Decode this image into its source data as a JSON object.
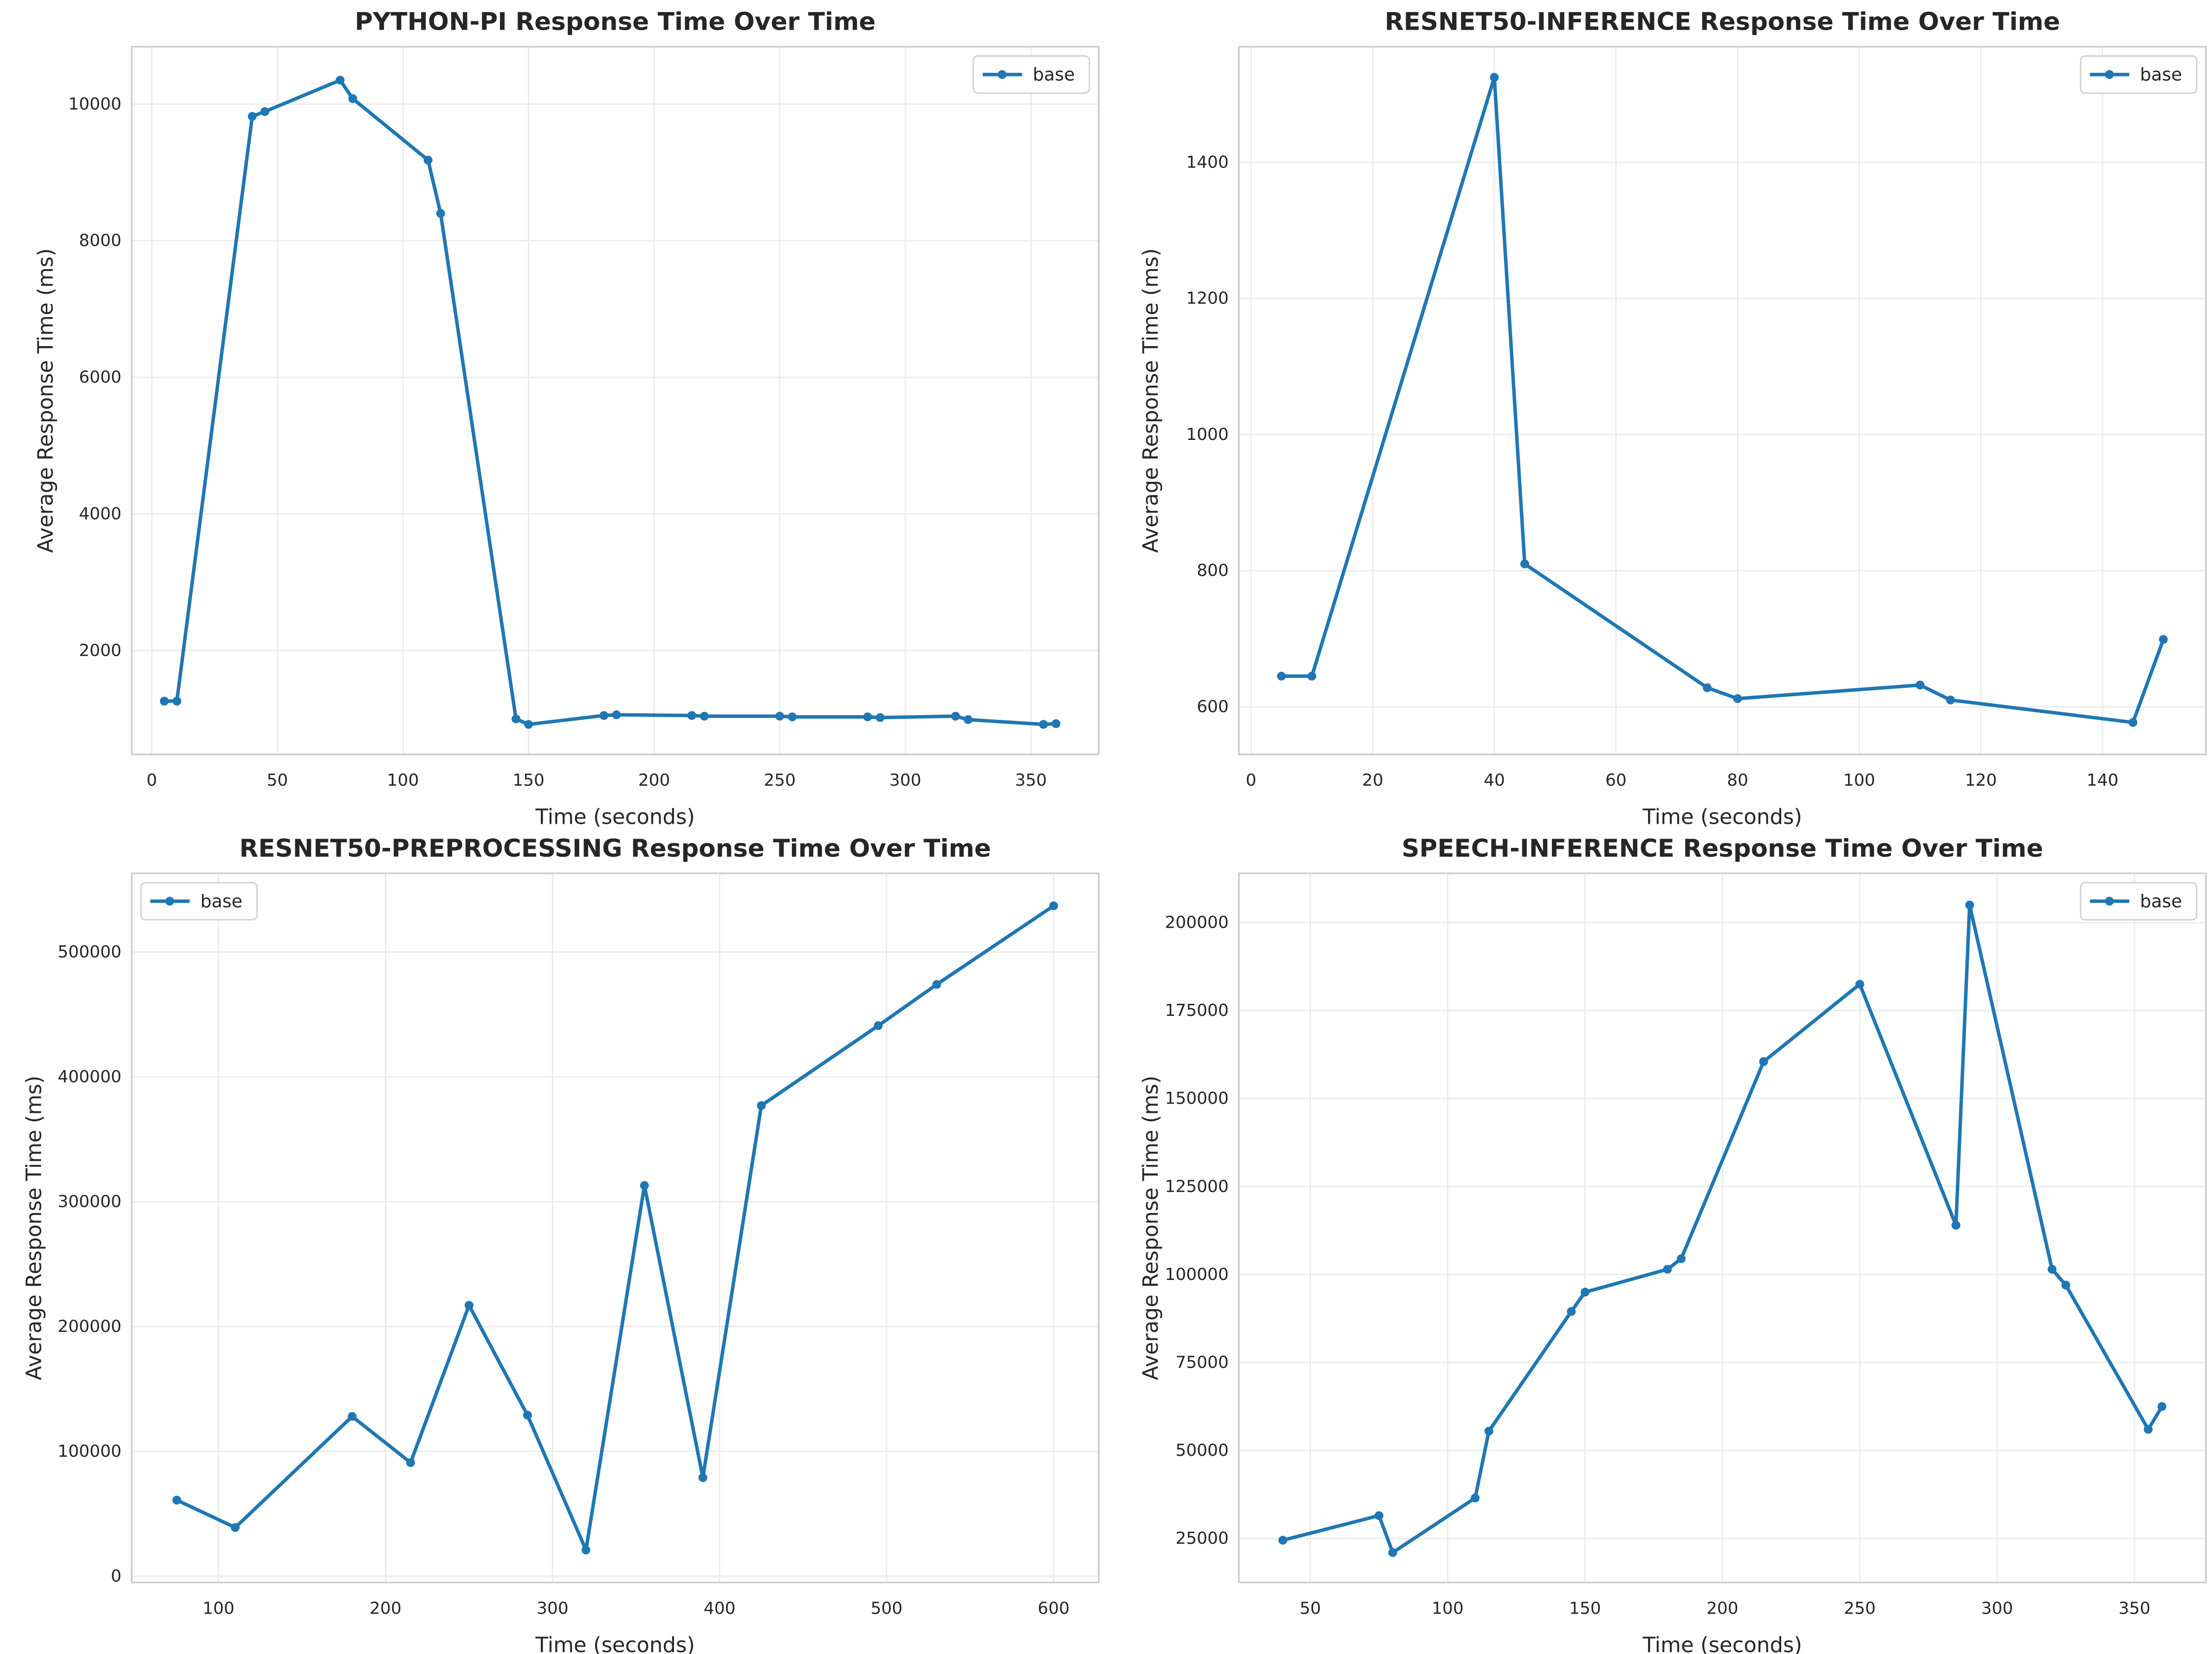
{
  "figure": {
    "legend_label": "base",
    "line_color": "#1f77b4",
    "grid": true
  },
  "chart_data": [
    {
      "type": "line",
      "title": "PYTHON-PI Response Time Over Time",
      "xlabel": "Time (seconds)",
      "ylabel": "Average Response Time (ms)",
      "xlim": [
        -8,
        377
      ],
      "ylim": [
        480,
        10840
      ],
      "xticks": [
        0,
        50,
        100,
        150,
        200,
        250,
        300,
        350
      ],
      "yticks": [
        2000,
        4000,
        6000,
        8000,
        10000
      ],
      "legend_position": "top-right",
      "series": [
        {
          "name": "base",
          "x": [
            5,
            10,
            40,
            45,
            75,
            80,
            110,
            115,
            145,
            150,
            180,
            185,
            215,
            220,
            250,
            255,
            285,
            290,
            320,
            325,
            355,
            360
          ],
          "y": [
            1260,
            1260,
            9820,
            9890,
            10350,
            10080,
            9180,
            8400,
            1000,
            920,
            1050,
            1060,
            1050,
            1040,
            1040,
            1030,
            1030,
            1020,
            1040,
            990,
            920,
            930
          ]
        }
      ]
    },
    {
      "type": "line",
      "title": "RESNET50-INFERENCE Response Time Over Time",
      "xlabel": "Time (seconds)",
      "ylabel": "Average Response Time (ms)",
      "xlim": [
        -2,
        157
      ],
      "ylim": [
        530,
        1570
      ],
      "xticks": [
        0,
        20,
        40,
        60,
        80,
        100,
        120,
        140
      ],
      "yticks": [
        600,
        800,
        1000,
        1200,
        1400
      ],
      "legend_position": "top-right",
      "series": [
        {
          "name": "base",
          "x": [
            5,
            10,
            40,
            45,
            75,
            80,
            110,
            115,
            145,
            150
          ],
          "y": [
            645,
            645,
            1525,
            810,
            628,
            612,
            632,
            610,
            577,
            699
          ]
        }
      ]
    },
    {
      "type": "line",
      "title": "RESNET50-PREPROCESSING Response Time Over Time",
      "xlabel": "Time (seconds)",
      "ylabel": "Average Response Time (ms)",
      "xlim": [
        48,
        627
      ],
      "ylim": [
        -5000,
        563000
      ],
      "xticks": [
        100,
        200,
        300,
        400,
        500,
        600
      ],
      "yticks": [
        0,
        100000,
        200000,
        300000,
        400000,
        500000
      ],
      "legend_position": "top-left",
      "series": [
        {
          "name": "base",
          "x": [
            75,
            110,
            180,
            215,
            250,
            285,
            320,
            355,
            390,
            425,
            495,
            530,
            600
          ],
          "y": [
            61000,
            39000,
            128000,
            91000,
            217000,
            129000,
            21000,
            313000,
            79000,
            377000,
            441000,
            474000,
            537000
          ]
        }
      ]
    },
    {
      "type": "line",
      "title": "SPEECH-INFERENCE Response Time Over Time",
      "xlabel": "Time (seconds)",
      "ylabel": "Average Response Time (ms)",
      "xlim": [
        24,
        376
      ],
      "ylim": [
        12500,
        214000
      ],
      "xticks": [
        50,
        100,
        150,
        200,
        250,
        300,
        350
      ],
      "yticks": [
        25000,
        50000,
        75000,
        100000,
        125000,
        150000,
        175000,
        200000
      ],
      "legend_position": "top-right",
      "series": [
        {
          "name": "base",
          "x": [
            40,
            75,
            80,
            110,
            115,
            145,
            150,
            180,
            185,
            215,
            250,
            285,
            290,
            320,
            325,
            355,
            360
          ],
          "y": [
            24500,
            31500,
            21000,
            36500,
            55500,
            89500,
            95000,
            101500,
            104500,
            160500,
            182500,
            114000,
            205000,
            101500,
            97000,
            56000,
            62500
          ]
        }
      ]
    }
  ]
}
